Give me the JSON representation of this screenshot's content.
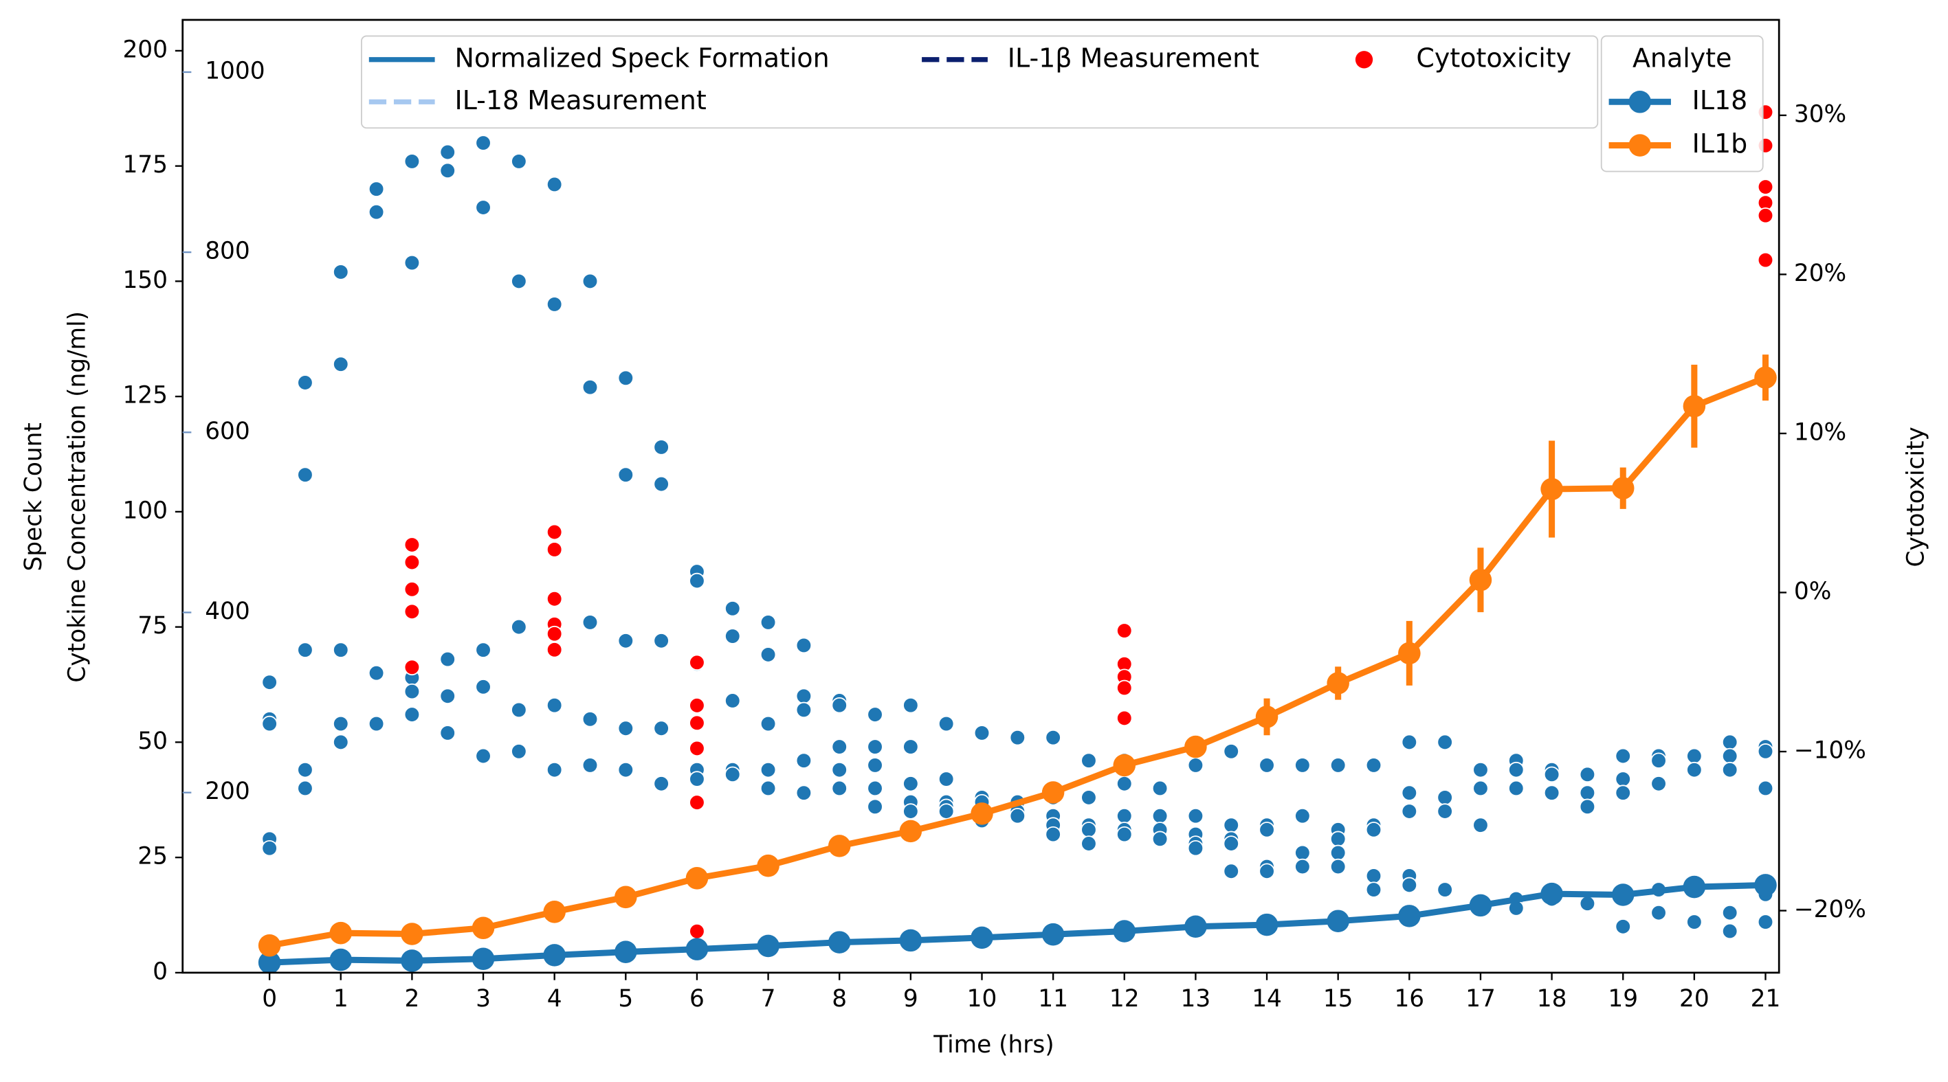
{
  "chart_data": {
    "type": "combo",
    "xlabel": "Time (hrs)",
    "ylabel": "Speck Count",
    "y2label": "Cytotoxicity",
    "y3label": "Cytokine Concentration (ng/ml)",
    "xlim": [
      -1.22,
      21.19
    ],
    "xticks": [
      0,
      1,
      2,
      3,
      4,
      5,
      6,
      7,
      8,
      9,
      10,
      11,
      12,
      13,
      14,
      15,
      16,
      17,
      18,
      19,
      20,
      21
    ],
    "ylim": [
      0,
      206.7
    ],
    "yticks": [
      0,
      25,
      50,
      75,
      100,
      125,
      150,
      175,
      200
    ],
    "y2lim": [
      -23.9,
      36
    ],
    "y2ticks": [
      {
        "value": -20,
        "label": "−20%"
      },
      {
        "value": -10,
        "label": "−10%"
      },
      {
        "value": 0,
        "label": "0%"
      },
      {
        "value": 10,
        "label": "10%"
      },
      {
        "value": 20,
        "label": "20%"
      },
      {
        "value": 30,
        "label": "30%"
      }
    ],
    "y2color": "#ff0000",
    "y3lim": [
      0,
      1058
    ],
    "y3ticks": [
      200,
      400,
      600,
      800,
      1000
    ],
    "y3color": "#7094c4",
    "legend": [
      {
        "label": "Normalized Speck Formation",
        "color": "#1f77b4",
        "style": "solid"
      },
      {
        "label": "IL-1β Measurement",
        "color": "#0b1f6e",
        "style": "dashed"
      },
      {
        "label": "Cytotoxicity",
        "color": "#ff0000",
        "style": "dot"
      },
      {
        "label": "IL-18 Measurement",
        "color": "#a6c8f0",
        "style": "dashed"
      }
    ],
    "legend2_title": "Analyte",
    "series": [
      {
        "kind": "scatter",
        "color": "#1f77b4",
        "x": [
          0,
          0,
          0,
          0,
          0,
          0.5,
          0.5,
          0.5,
          0.5,
          0.5,
          1,
          1,
          1,
          1,
          1,
          1.5,
          1.5,
          1.5,
          1.5,
          2,
          2,
          2,
          2,
          2,
          2.5,
          2.5,
          2.5,
          2.5,
          2.5,
          3,
          3,
          3,
          3,
          3,
          3.5,
          3.5,
          3.5,
          3.5,
          3.5,
          4,
          4,
          4,
          4,
          4.5,
          4.5,
          4.5,
          4.5,
          4.5,
          5,
          5,
          5,
          5,
          5,
          5.5,
          5.5,
          5.5,
          5.5,
          5.5,
          6,
          6,
          6,
          6,
          6,
          6.5,
          6.5,
          6.5,
          6.5,
          6.5,
          7,
          7,
          7,
          7,
          7,
          7.5,
          7.5,
          7.5,
          7.5,
          7.5,
          8,
          8,
          8,
          8,
          8,
          8.5,
          8.5,
          8.5,
          8.5,
          8.5,
          9,
          9,
          9,
          9,
          9,
          9.5,
          9.5,
          9.5,
          9.5,
          9.5,
          10,
          10,
          10,
          10,
          10,
          10.5,
          10.5,
          10.5,
          10.5,
          11,
          11,
          11,
          11,
          11,
          11.5,
          11.5,
          11.5,
          11.5,
          11.5,
          12,
          12,
          12,
          12,
          12,
          12.5,
          12.5,
          12.5,
          12.5,
          13,
          13,
          13,
          13,
          13,
          13.5,
          13.5,
          13.5,
          13.5,
          13.5,
          14,
          14,
          14,
          14,
          14,
          14.5,
          14.5,
          14.5,
          14.5,
          15,
          15,
          15,
          15,
          15,
          15.5,
          15.5,
          15.5,
          15.5,
          15.5,
          16,
          16,
          16,
          16,
          16,
          16.5,
          16.5,
          16.5,
          16.5,
          17,
          17,
          17,
          17,
          17.5,
          17.5,
          17.5,
          17.5,
          17.5,
          18,
          18,
          18,
          18,
          18,
          18.5,
          18.5,
          18.5,
          18.5,
          19,
          19,
          19,
          19,
          19,
          19.5,
          19.5,
          19.5,
          19.5,
          19.5,
          20,
          20,
          20,
          20,
          20.5,
          20.5,
          20.5,
          20.5,
          20.5,
          21,
          21,
          21,
          21,
          21
        ],
        "values": [
          63,
          55,
          54,
          29,
          27,
          128,
          108,
          70,
          44,
          40,
          152,
          132,
          70,
          54,
          50,
          170,
          165,
          65,
          54,
          176,
          154,
          64,
          61,
          56,
          178,
          174,
          68,
          60,
          52,
          180,
          166,
          70,
          62,
          47,
          176,
          150,
          75,
          57,
          48,
          171,
          145,
          58,
          44,
          150,
          127,
          76,
          55,
          45,
          129,
          108,
          72,
          53,
          44,
          114,
          106,
          72,
          53,
          41,
          87,
          85,
          67,
          44,
          42,
          79,
          73,
          59,
          44,
          43,
          76,
          69,
          54,
          44,
          40,
          71,
          60,
          57,
          46,
          39,
          59,
          58,
          49,
          44,
          40,
          56,
          49,
          45,
          40,
          36,
          58,
          49,
          41,
          37,
          35,
          54,
          42,
          37,
          36,
          35,
          52,
          38,
          37,
          34,
          33,
          51,
          37,
          35,
          34,
          51,
          38,
          34,
          32,
          30,
          46,
          38,
          32,
          31,
          28,
          46,
          41,
          34,
          31,
          30,
          40,
          34,
          31,
          29,
          45,
          34,
          30,
          28,
          27,
          48,
          32,
          29,
          28,
          22,
          45,
          32,
          31,
          23,
          22,
          45,
          34,
          26,
          23,
          45,
          31,
          29,
          26,
          23,
          45,
          32,
          31,
          21,
          18,
          50,
          39,
          35,
          21,
          19,
          50,
          38,
          35,
          18,
          44,
          40,
          32,
          15,
          46,
          44,
          40,
          16,
          14,
          44,
          43,
          39,
          17,
          16,
          43,
          39,
          36,
          15,
          47,
          42,
          39,
          17,
          10,
          47,
          46,
          41,
          18,
          13,
          47,
          44,
          19,
          11,
          50,
          47,
          44,
          13,
          9,
          49,
          48,
          40,
          17,
          11
        ]
      },
      {
        "kind": "scatter",
        "color": "#ff0000",
        "axis": "y2",
        "x": [
          2,
          2,
          2,
          2,
          2,
          4,
          4,
          4,
          4,
          4,
          4,
          6,
          6,
          6,
          6,
          6,
          6,
          12,
          12,
          12,
          12,
          12,
          21,
          21,
          21,
          21,
          21,
          21
        ],
        "values": [
          3.0,
          1.9,
          0.2,
          -1.2,
          -4.7,
          3.8,
          2.7,
          -0.4,
          -2.0,
          -2.6,
          -3.6,
          -4.4,
          -7.1,
          -8.2,
          -9.8,
          -13.2,
          -21.3,
          -2.4,
          -4.5,
          -5.3,
          -6.0,
          -7.9,
          30.2,
          28.1,
          25.5,
          24.5,
          23.7,
          20.9
        ]
      },
      {
        "kind": "line",
        "name": "IL18",
        "color": "#1f77b4",
        "x": [
          0,
          1,
          2,
          3,
          4,
          5,
          6,
          7,
          8,
          9,
          10,
          11,
          12,
          13,
          14,
          15,
          16,
          17,
          18,
          19,
          20,
          21
        ],
        "values": [
          2.2,
          2.8,
          2.6,
          3,
          3.8,
          4.5,
          5.1,
          5.8,
          6.6,
          7,
          7.6,
          8.3,
          9,
          10,
          10.4,
          11.2,
          12.3,
          14.6,
          17.1,
          16.9,
          18.6,
          19
        ]
      },
      {
        "kind": "line",
        "name": "IL1b",
        "color": "#ff7f0e",
        "x": [
          0,
          1,
          2,
          3,
          4,
          5,
          6,
          7,
          8,
          9,
          10,
          11,
          12,
          13,
          14,
          15,
          16,
          17,
          18,
          19,
          20,
          21
        ],
        "values": [
          5.9,
          8.6,
          8.4,
          9.7,
          13.2,
          16.4,
          20.5,
          23.2,
          27.5,
          30.7,
          34.5,
          39.1,
          45,
          49,
          55.5,
          62.8,
          69.3,
          85.2,
          104.9,
          105.1,
          122.9,
          129.1
        ],
        "errors": [
          0.8,
          0.8,
          0.8,
          0.8,
          1,
          1,
          1,
          1,
          1.3,
          1,
          1,
          1,
          1.5,
          1.2,
          4,
          3.6,
          7,
          7,
          10.5,
          4.5,
          9,
          5
        ]
      }
    ]
  }
}
